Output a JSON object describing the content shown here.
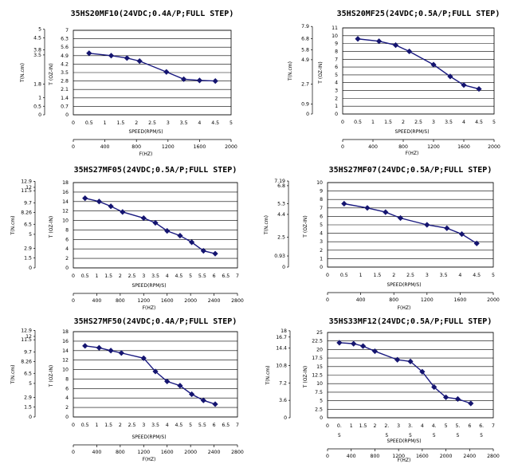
{
  "chart_data": [
    {
      "type": "line",
      "title": "35HS20MF10(24VDC;0.4A/P;FULL STEP)",
      "xlabel": "SPEED(RPM/S)",
      "x2label": "F(HZ)",
      "ylabel_left": "T(N.cm)",
      "ylabel_right": "T (OZ-IN)",
      "xlim": [
        0,
        5
      ],
      "x_ticks": [
        "0",
        "0.5",
        "1",
        "1.5",
        "2",
        "2.5",
        "3",
        "3.5",
        "4",
        "4.5",
        "5"
      ],
      "x2lim": [
        0,
        2000
      ],
      "x2_ticks": [
        "0",
        "400",
        "800",
        "1200",
        "1600",
        "2000"
      ],
      "ylim": [
        0,
        7
      ],
      "y_ticks": [
        "0",
        "0.7",
        "1.4",
        "2.1",
        "2.8",
        "3.5",
        "4.2",
        "4.9",
        "5.6",
        "6.3",
        "7"
      ],
      "ylim_left": [
        0,
        4.94
      ],
      "y_left_ticks": [
        {
          "v": 0,
          "t": "0"
        },
        {
          "v": 0.5,
          "t": "0.5"
        },
        {
          "v": 1,
          "t": "1"
        },
        {
          "v": 1.8,
          "t": "1.8"
        },
        {
          "v": 3.5,
          "t": "3.5"
        },
        {
          "v": 3.8,
          "t": "3.8"
        },
        {
          "v": 4.5,
          "t": "4.5"
        },
        {
          "v": 5,
          "t": "5"
        }
      ],
      "series": [
        {
          "x": [
            0.5,
            1.2,
            1.7,
            2.1,
            2.95,
            3.5,
            4.0,
            4.5
          ],
          "y": [
            5.1,
            4.9,
            4.7,
            4.45,
            3.55,
            2.95,
            2.85,
            2.8
          ]
        }
      ]
    },
    {
      "type": "line",
      "title": "35HS20MF25(24VDC;0.5A/P;FULL STEP)",
      "xlabel": "SPEED(RPM/S)",
      "x2label": "F(HZ)",
      "ylabel_left": "T(N.cm)",
      "ylabel_right": "T (OZ-IN)",
      "xlim": [
        0,
        5
      ],
      "x_ticks": [
        "0",
        "0.5",
        "1",
        "1.5",
        "2",
        "2.5",
        "3",
        "3.5",
        "4",
        "4.5",
        "5"
      ],
      "x2lim": [
        0,
        2000
      ],
      "x2_ticks": [
        "0",
        "400",
        "800",
        "1200",
        "1600",
        "2000"
      ],
      "ylim": [
        0,
        11
      ],
      "y_ticks": [
        "0",
        "1",
        "2",
        "3",
        "4",
        "5",
        "6",
        "7",
        "8",
        "9",
        "10",
        "11"
      ],
      "ylim_left": [
        0,
        7.77
      ],
      "y_left_ticks": [
        {
          "v": 0,
          "t": "0"
        },
        {
          "v": 0.9,
          "t": "0.9"
        },
        {
          "v": 2.7,
          "t": "2.7"
        },
        {
          "v": 4.9,
          "t": "4.9"
        },
        {
          "v": 5.8,
          "t": "5.8"
        },
        {
          "v": 6.8,
          "t": "6.8"
        },
        {
          "v": 7.9,
          "t": "7.9"
        }
      ],
      "series": [
        {
          "x": [
            0.5,
            1.2,
            1.75,
            2.2,
            3.0,
            3.55,
            4.0,
            4.5
          ],
          "y": [
            9.6,
            9.3,
            8.8,
            8.0,
            6.3,
            4.8,
            3.7,
            3.2
          ]
        }
      ]
    },
    {
      "type": "line",
      "title": "35HS27MF05(24VDC;0.5A/P;FULL STEP)",
      "xlabel": "SPEED(RPM/S)",
      "x2label": "F(HZ)",
      "ylabel_left": "T(N.cm)",
      "ylabel_right": "T (OZ-IN)",
      "xlim": [
        0,
        7
      ],
      "x_ticks": [
        "0",
        "0.5",
        "1",
        "1.5",
        "2",
        "2.5",
        "3",
        "3.5",
        "4",
        "4.5",
        "5",
        "5.5",
        "6",
        "6.5",
        "7"
      ],
      "x2lim": [
        0,
        2800
      ],
      "x2_ticks": [
        "0",
        "400",
        "800",
        "1200",
        "1600",
        "2000",
        "2400",
        "2800"
      ],
      "ylim": [
        0,
        18
      ],
      "y_ticks": [
        "0",
        "2",
        "4",
        "6",
        "8",
        "10",
        "12",
        "14",
        "16",
        "18"
      ],
      "ylim_left": [
        0,
        12.71
      ],
      "y_left_ticks": [
        {
          "v": 0,
          "t": "0"
        },
        {
          "v": 1.5,
          "t": "1.5"
        },
        {
          "v": 2.9,
          "t": "2.9"
        },
        {
          "v": 5,
          "t": "5"
        },
        {
          "v": 6.5,
          "t": "6.5"
        },
        {
          "v": 8.26,
          "t": "8.26"
        },
        {
          "v": 9.7,
          "t": "9.7"
        },
        {
          "v": 11.5,
          "t": "11.5"
        },
        {
          "v": 12,
          "t": "12"
        },
        {
          "v": 12.9,
          "t": "12.9"
        }
      ],
      "series": [
        {
          "x": [
            0.5,
            1.1,
            1.6,
            2.1,
            3.0,
            3.5,
            4.0,
            4.55,
            5.05,
            5.55,
            6.05
          ],
          "y": [
            14.7,
            14.0,
            13.0,
            11.8,
            10.5,
            9.5,
            7.8,
            6.8,
            5.4,
            3.6,
            3.0
          ]
        }
      ]
    },
    {
      "type": "line",
      "title": "35HS27MF07(24VDC;0.5A/P;FULL STEP)",
      "xlabel": "SPEED(RPM/S)",
      "x2label": "F(HZ)",
      "ylabel_left": "T(N.cm)",
      "ylabel_right": "T (OZ-IN)",
      "xlim": [
        0,
        5
      ],
      "x_ticks": [
        "0",
        "0.5",
        "1",
        "1.5",
        "2",
        "2.5",
        "3",
        "3.5",
        "4",
        "4.5",
        "5"
      ],
      "x2lim": [
        0,
        2000
      ],
      "x2_ticks": [
        "0",
        "400",
        "800",
        "1200",
        "1600",
        "2000"
      ],
      "ylim": [
        0,
        10
      ],
      "y_ticks": [
        "0",
        "1",
        "2",
        "3",
        "4",
        "5",
        "6",
        "7",
        "8",
        "9",
        "10"
      ],
      "ylim_left": [
        0,
        7.06
      ],
      "y_left_ticks": [
        {
          "v": 0,
          "t": "0"
        },
        {
          "v": 0.93,
          "t": "0.93"
        },
        {
          "v": 2.5,
          "t": "2.5"
        },
        {
          "v": 4.4,
          "t": "4.4"
        },
        {
          "v": 5.3,
          "t": "5.3"
        },
        {
          "v": 6.8,
          "t": "6.8"
        },
        {
          "v": 7.19,
          "t": "7.19"
        }
      ],
      "series": [
        {
          "x": [
            0.5,
            1.2,
            1.75,
            2.2,
            3.0,
            3.6,
            4.05,
            4.5
          ],
          "y": [
            7.5,
            7.0,
            6.5,
            5.8,
            5.0,
            4.6,
            3.9,
            2.8
          ]
        }
      ]
    },
    {
      "type": "line",
      "title": "35HS27MF50(24VDC;0.4A/P;FULL STEP)",
      "xlabel": "SPEED(RPM/S)",
      "x2label": "F(HZ)",
      "ylabel_left": "T(N.cm)",
      "ylabel_right": "T (OZ-IN)",
      "xlim": [
        0,
        7
      ],
      "x_ticks": [
        "0",
        "0.5",
        "1",
        "1.5",
        "2",
        "2.5",
        "3",
        "3.5",
        "4",
        "4.5",
        "5",
        "5.5",
        "6",
        "6.5",
        "7"
      ],
      "x2lim": [
        0,
        2800
      ],
      "x2_ticks": [
        "0",
        "400",
        "800",
        "1200",
        "1600",
        "2000",
        "2400",
        "2800"
      ],
      "ylim": [
        0,
        18
      ],
      "y_ticks": [
        "0",
        "2",
        "4",
        "6",
        "8",
        "10",
        "12",
        "14",
        "16",
        "18"
      ],
      "ylim_left": [
        0,
        12.71
      ],
      "y_left_ticks": [
        {
          "v": 0,
          "t": "0"
        },
        {
          "v": 1.5,
          "t": "1.5"
        },
        {
          "v": 2.9,
          "t": "2.9"
        },
        {
          "v": 5,
          "t": "5"
        },
        {
          "v": 6.5,
          "t": "6.5"
        },
        {
          "v": 8.26,
          "t": "8.26"
        },
        {
          "v": 9.7,
          "t": "9.7"
        },
        {
          "v": 11.5,
          "t": "11.5"
        },
        {
          "v": 12,
          "t": "12"
        },
        {
          "v": 12.9,
          "t": "12.9"
        }
      ],
      "series": [
        {
          "x": [
            0.5,
            1.1,
            1.6,
            2.05,
            3.0,
            3.5,
            4.0,
            4.55,
            5.05,
            5.55,
            6.05
          ],
          "y": [
            15.0,
            14.6,
            14.0,
            13.5,
            12.4,
            9.6,
            7.5,
            6.6,
            4.8,
            3.5,
            2.7
          ]
        }
      ]
    },
    {
      "type": "line",
      "title": "35HS33MF12(24VDC;0.5A/P;FULL STEP)",
      "xlabel": "SPEED(RPM/S)",
      "x2label": "F(HZ)",
      "ylabel_left": "T(N.cm)",
      "ylabel_right": "T (OZ-IN)",
      "xlim": [
        0,
        7
      ],
      "x_ticks": [
        {
          "v": 0,
          "t": "0"
        },
        {
          "v": 0.5,
          "t": "0.",
          "t2": "5"
        },
        {
          "v": 1,
          "t": "1"
        },
        {
          "v": 1.5,
          "t": "1.5"
        },
        {
          "v": 2,
          "t": "2"
        },
        {
          "v": 2.5,
          "t": "2.",
          "t2": "5"
        },
        {
          "v": 3,
          "t": "3"
        },
        {
          "v": 3.5,
          "t": "3.",
          "t2": "5"
        },
        {
          "v": 4,
          "t": "4"
        },
        {
          "v": 4.5,
          "t": "4.",
          "t2": "5"
        },
        {
          "v": 5,
          "t": "5"
        },
        {
          "v": 5.5,
          "t": "5.",
          "t2": "5"
        },
        {
          "v": 6,
          "t": "6"
        },
        {
          "v": 6.5,
          "t": "6.",
          "t2": "5"
        },
        {
          "v": 7,
          "t": "7"
        }
      ],
      "x2lim": [
        0,
        2800
      ],
      "x2_ticks": [
        "0",
        "400",
        "800",
        "1200",
        "1600",
        "2000",
        "2400",
        "2800"
      ],
      "ylim": [
        0,
        25
      ],
      "y_ticks": [
        "0",
        "2.5",
        "5",
        "7.5",
        "10",
        "12.5",
        "15",
        "17.5",
        "20",
        "22.5",
        "25"
      ],
      "ylim_left": [
        0,
        17.65
      ],
      "y_left_ticks": [
        {
          "v": 0,
          "t": "0"
        },
        {
          "v": 3.6,
          "t": "3.6"
        },
        {
          "v": 7.2,
          "t": "7.2"
        },
        {
          "v": 10.8,
          "t": "10.8"
        },
        {
          "v": 14.4,
          "t": "14.4"
        },
        {
          "v": 16.7,
          "t": "16.7"
        },
        {
          "v": 18,
          "t": "18"
        }
      ],
      "series": [
        {
          "x": [
            0.5,
            1.1,
            1.5,
            2.0,
            2.95,
            3.5,
            4.0,
            4.5,
            5.0,
            5.5,
            6.05
          ],
          "y": [
            22.0,
            21.7,
            21.0,
            19.5,
            17.0,
            16.5,
            13.5,
            9.0,
            6.0,
            5.5,
            4.2
          ]
        }
      ]
    }
  ]
}
